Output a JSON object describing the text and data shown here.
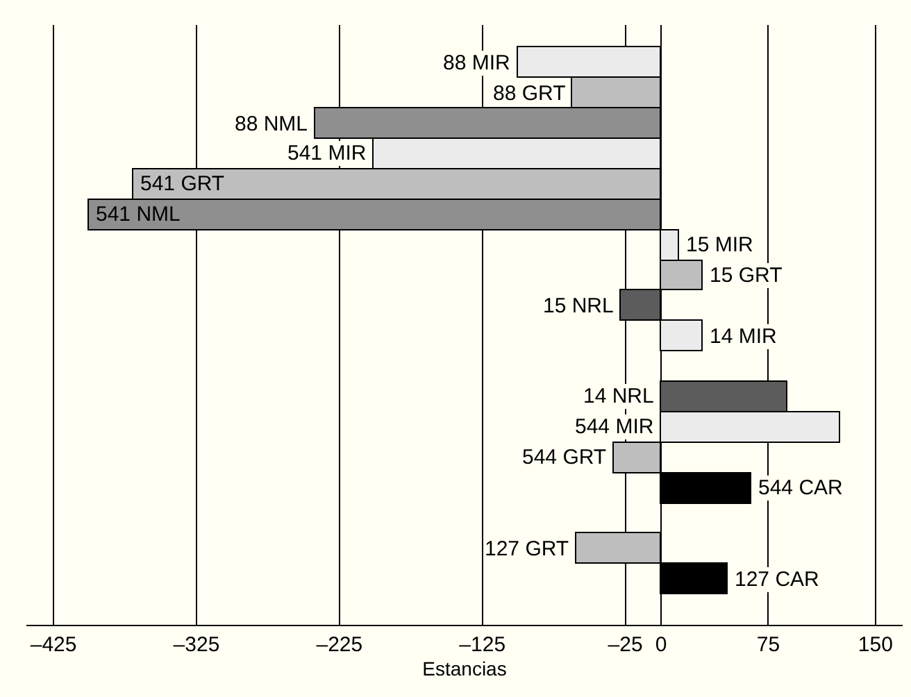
{
  "chart_data": {
    "type": "bar",
    "orientation": "horizontal",
    "xlabel": "Estancias",
    "categories": [
      "88 MIR",
      "88 GRT",
      "88 NML",
      "541 MIR",
      "541 GRT",
      "541 NML",
      "15 MIR",
      "15 GRT",
      "15 NRL",
      "14 MIR",
      null,
      "14 NRL",
      "544 MIR",
      "544 GRT",
      "544 CAR",
      null,
      "127 GRT",
      "127 CAR"
    ],
    "values": [
      -100,
      -62,
      -242,
      -201,
      -369,
      -400,
      13,
      29,
      -28,
      29,
      null,
      88,
      125,
      -33,
      63,
      null,
      -59,
      47
    ],
    "colors": [
      "#ebebeb",
      "#bebebe",
      "#8f8f8f",
      "#ebebeb",
      "#bebebe",
      "#8f8f8f",
      "#ebebeb",
      "#bebebe",
      "#5c5c5c",
      "#ebebeb",
      null,
      "#5c5c5c",
      "#ebebeb",
      "#bebebe",
      "#000000",
      null,
      "#bebebe",
      "#000000"
    ],
    "xlim": [
      -444,
      169
    ],
    "xticks": [
      {
        "value": -425,
        "label": "–425"
      },
      {
        "value": -325,
        "label": "–325"
      },
      {
        "value": -225,
        "label": "–225"
      },
      {
        "value": -125,
        "label": "–125"
      },
      {
        "value": -25,
        "label": "–25"
      },
      0,
      75,
      150
    ],
    "grid": "x",
    "tick_labels": "x"
  }
}
